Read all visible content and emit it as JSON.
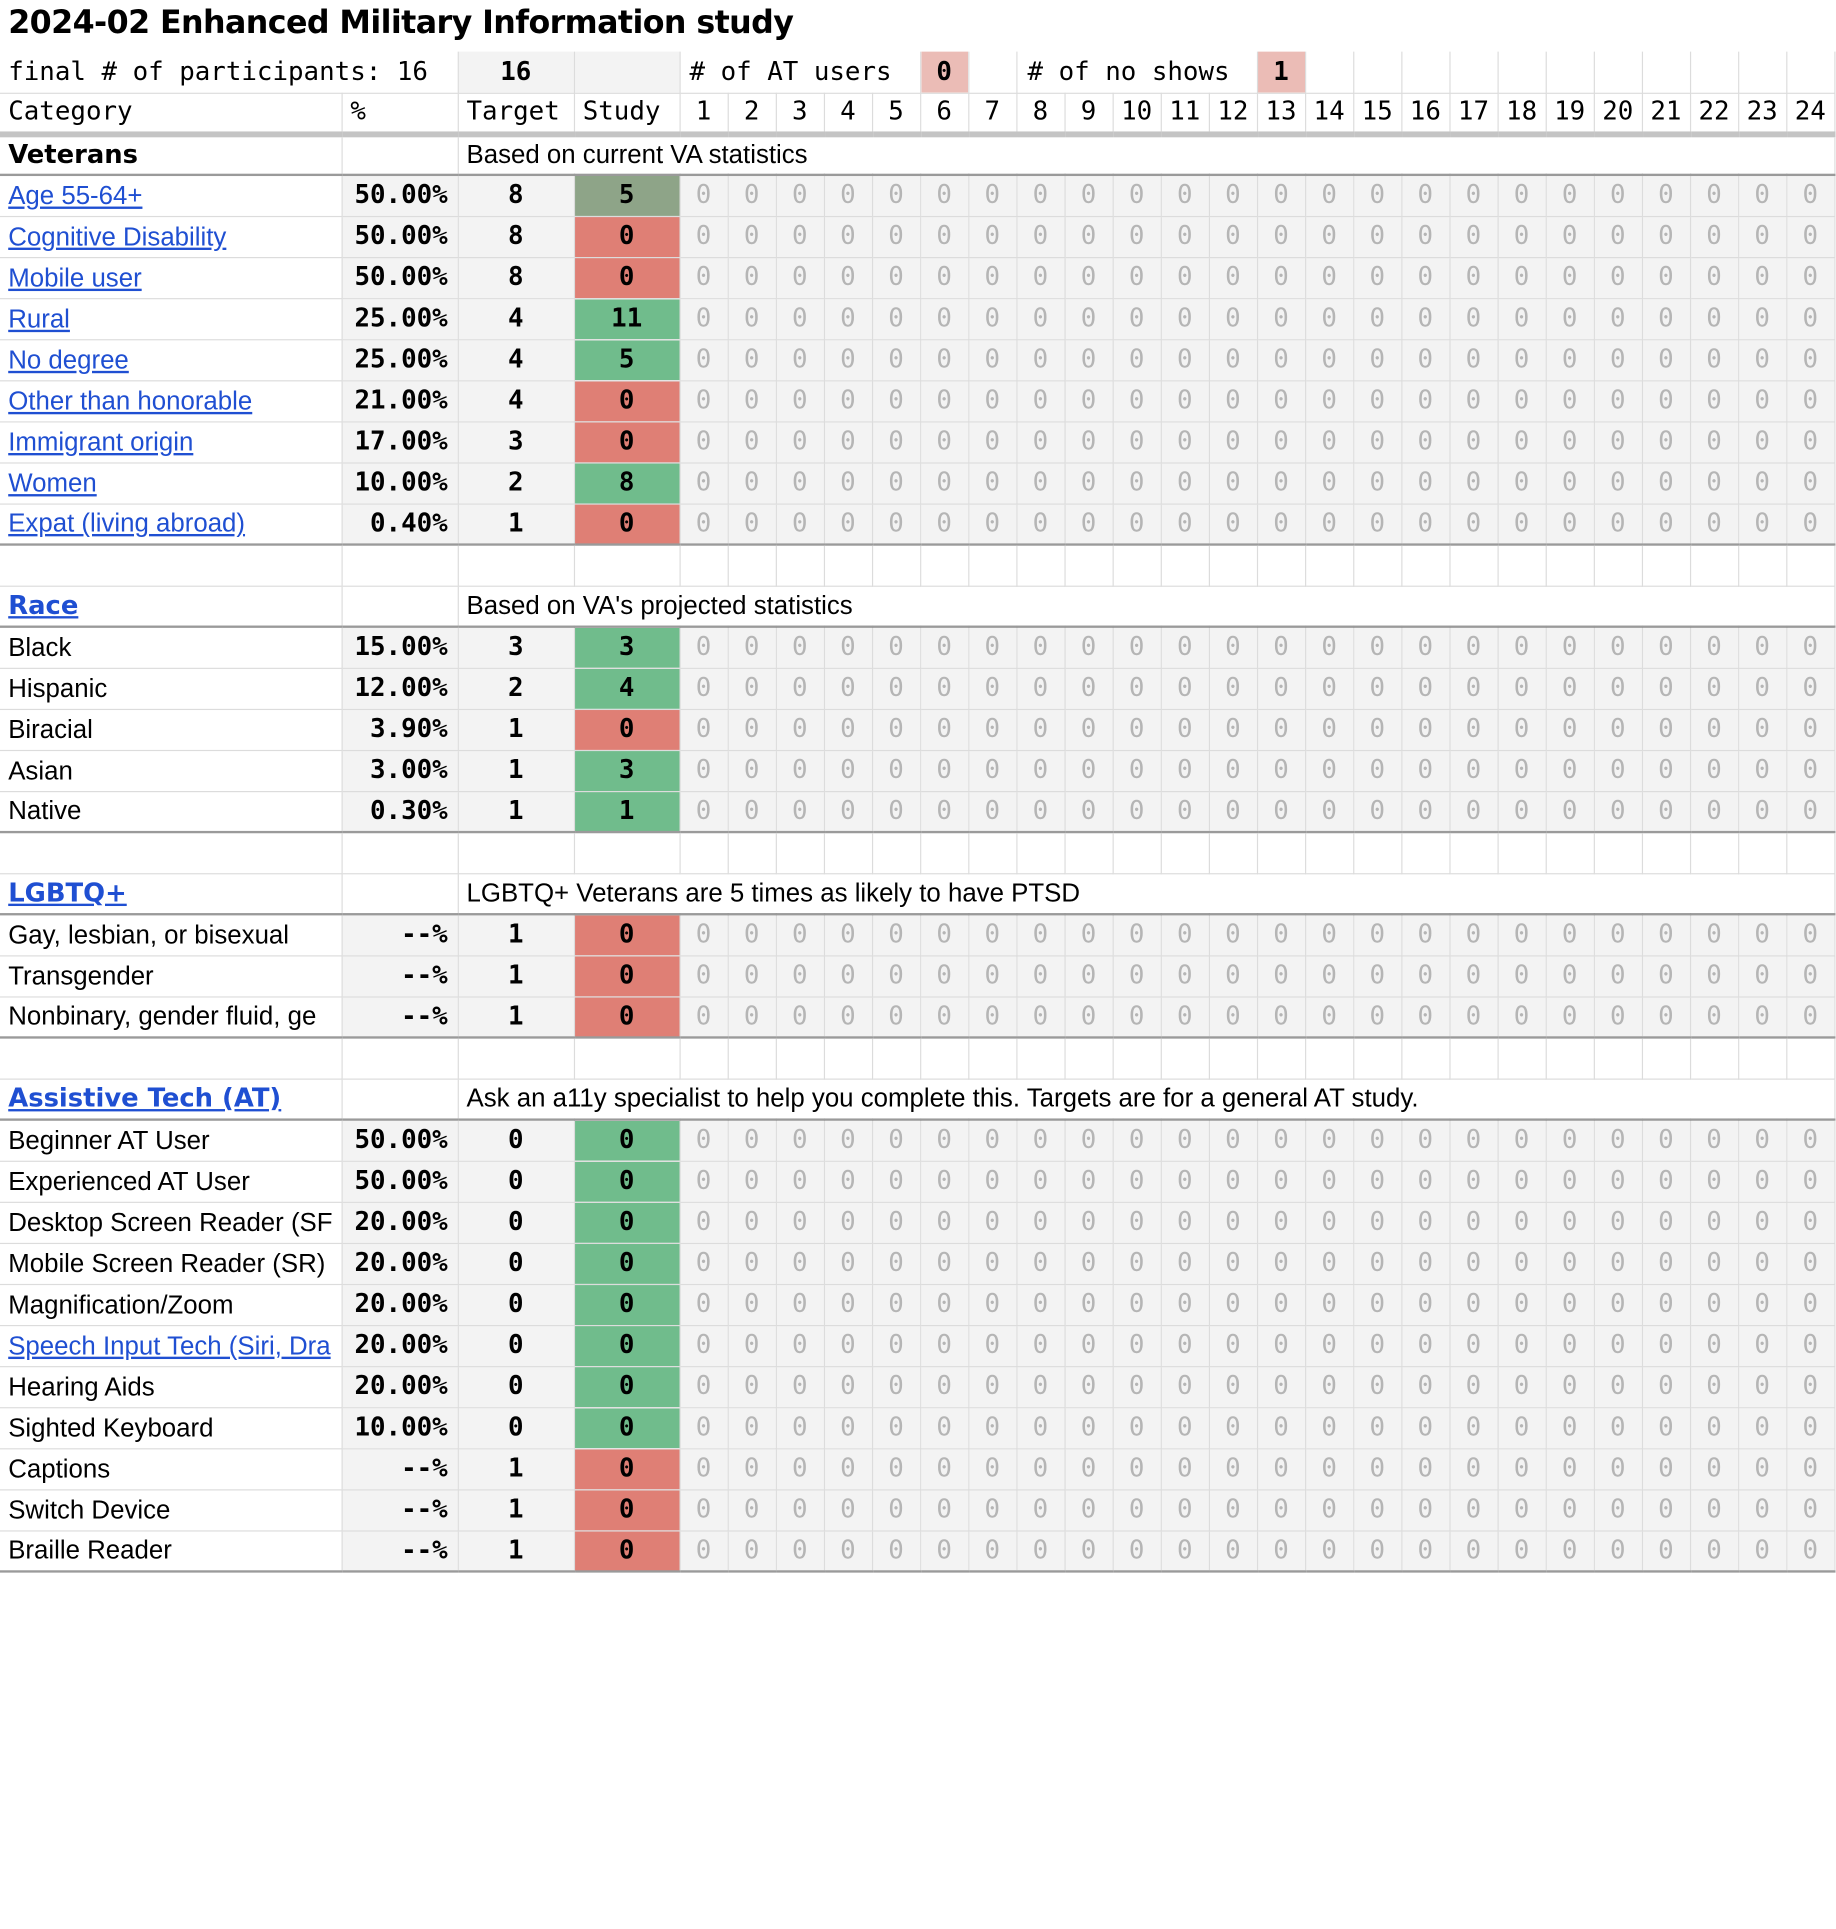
{
  "title": "2024-02 Enhanced Military Information study",
  "summary": {
    "participants_label": "final # of participants: 16",
    "participants_value": "16",
    "at_users_label": "# of AT users",
    "at_users_value": "0",
    "no_shows_label": "# of no shows",
    "no_shows_value": "1"
  },
  "headers": {
    "category": "Category",
    "percent": "%",
    "target": "Target",
    "study": "Study",
    "participants": [
      "1",
      "2",
      "3",
      "4",
      "5",
      "6",
      "7",
      "8",
      "9",
      "10",
      "11",
      "12",
      "13",
      "14",
      "15",
      "16",
      "17",
      "18",
      "19",
      "20",
      "21",
      "22",
      "23",
      "24"
    ]
  },
  "zero_value": "0",
  "sections": [
    {
      "name": "Veterans",
      "link": false,
      "note": "Based on current VA statistics",
      "rows": [
        {
          "label": "Age 55-64+",
          "link": true,
          "pct": "50.00%",
          "target": "8",
          "study": "5",
          "status": "olive"
        },
        {
          "label": "Cognitive Disability",
          "link": true,
          "pct": "50.00%",
          "target": "8",
          "study": "0",
          "status": "red"
        },
        {
          "label": "Mobile user",
          "link": true,
          "pct": "50.00%",
          "target": "8",
          "study": "0",
          "status": "red"
        },
        {
          "label": "Rural",
          "link": true,
          "pct": "25.00%",
          "target": "4",
          "study": "11",
          "status": "green"
        },
        {
          "label": "No degree",
          "link": true,
          "pct": "25.00%",
          "target": "4",
          "study": "5",
          "status": "green"
        },
        {
          "label": "Other than honorable",
          "link": true,
          "pct": "21.00%",
          "target": "4",
          "study": "0",
          "status": "red"
        },
        {
          "label": "Immigrant origin",
          "link": true,
          "pct": "17.00%",
          "target": "3",
          "study": "0",
          "status": "red"
        },
        {
          "label": "Women",
          "link": true,
          "pct": "10.00%",
          "target": "2",
          "study": "8",
          "status": "green"
        },
        {
          "label": "Expat (living abroad)",
          "link": true,
          "pct": "0.40%",
          "target": "1",
          "study": "0",
          "status": "red"
        }
      ]
    },
    {
      "name": "Race",
      "link": true,
      "note": "Based on VA's projected statistics",
      "rows": [
        {
          "label": "Black",
          "link": false,
          "pct": "15.00%",
          "target": "3",
          "study": "3",
          "status": "green"
        },
        {
          "label": "Hispanic",
          "link": false,
          "pct": "12.00%",
          "target": "2",
          "study": "4",
          "status": "green"
        },
        {
          "label": "Biracial",
          "link": false,
          "pct": "3.90%",
          "target": "1",
          "study": "0",
          "status": "red"
        },
        {
          "label": "Asian",
          "link": false,
          "pct": "3.00%",
          "target": "1",
          "study": "3",
          "status": "green"
        },
        {
          "label": "Native",
          "link": false,
          "pct": "0.30%",
          "target": "1",
          "study": "1",
          "status": "green"
        }
      ]
    },
    {
      "name": "LGBTQ+",
      "link": true,
      "note": "LGBTQ+ Veterans are 5 times as likely to have PTSD",
      "rows": [
        {
          "label": "Gay, lesbian, or bisexual",
          "link": false,
          "pct": "--%",
          "target": "1",
          "study": "0",
          "status": "red"
        },
        {
          "label": "Transgender",
          "link": false,
          "pct": "--%",
          "target": "1",
          "study": "0",
          "status": "red"
        },
        {
          "label": "Nonbinary, gender fluid, ge",
          "link": false,
          "pct": "--%",
          "target": "1",
          "study": "0",
          "status": "red"
        }
      ]
    },
    {
      "name": "Assistive Tech (AT)",
      "link": true,
      "note": "Ask an a11y specialist to help you complete this. Targets are for a general AT study.",
      "rows": [
        {
          "label": "Beginner AT User",
          "link": false,
          "pct": "50.00%",
          "target": "0",
          "study": "0",
          "status": "green"
        },
        {
          "label": "Experienced AT User",
          "link": false,
          "pct": "50.00%",
          "target": "0",
          "study": "0",
          "status": "green"
        },
        {
          "label": "Desktop Screen Reader (SF",
          "link": false,
          "pct": "20.00%",
          "target": "0",
          "study": "0",
          "status": "green"
        },
        {
          "label": "Mobile Screen Reader (SR)",
          "link": false,
          "pct": "20.00%",
          "target": "0",
          "study": "0",
          "status": "green"
        },
        {
          "label": "Magnification/Zoom",
          "link": false,
          "pct": "20.00%",
          "target": "0",
          "study": "0",
          "status": "green"
        },
        {
          "label": "Speech Input Tech (Siri, Dra",
          "link": true,
          "pct": "20.00%",
          "target": "0",
          "study": "0",
          "status": "green"
        },
        {
          "label": "Hearing Aids",
          "link": false,
          "pct": "20.00%",
          "target": "0",
          "study": "0",
          "status": "green"
        },
        {
          "label": "Sighted Keyboard",
          "link": false,
          "pct": "10.00%",
          "target": "0",
          "study": "0",
          "status": "green"
        },
        {
          "label": "Captions",
          "link": false,
          "pct": "--%",
          "target": "1",
          "study": "0",
          "status": "red"
        },
        {
          "label": "Switch Device",
          "link": false,
          "pct": "--%",
          "target": "1",
          "study": "0",
          "status": "red"
        },
        {
          "label": "Braille Reader",
          "link": false,
          "pct": "--%",
          "target": "1",
          "study": "0",
          "status": "red"
        }
      ]
    }
  ]
}
